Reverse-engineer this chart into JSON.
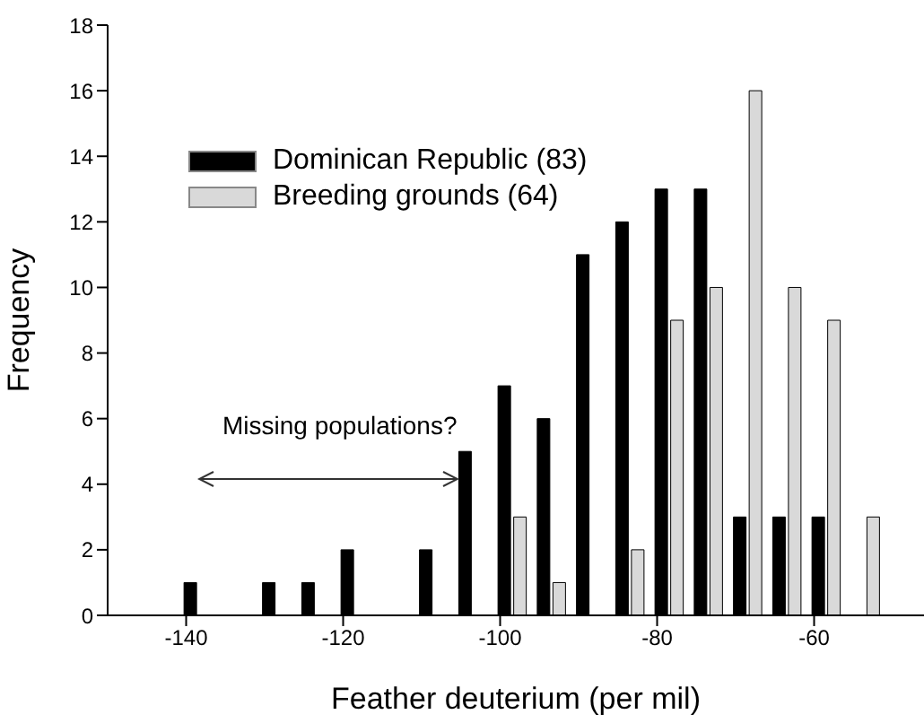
{
  "chart_data": {
    "type": "bar",
    "xlabel": "Feather deuterium (per mil)",
    "ylabel": "Frequency",
    "xlim": [
      -150,
      -46
    ],
    "xticks": [
      -140,
      -120,
      -100,
      -80,
      -60
    ],
    "ylim": [
      0,
      18
    ],
    "yticks": [
      0,
      2,
      4,
      6,
      8,
      10,
      12,
      14,
      16,
      18
    ],
    "series": [
      {
        "name": "Dominican Republic (83)",
        "color": "#000000",
        "x": [
          -139.5,
          -129.5,
          -124.5,
          -119.5,
          -109.5,
          -104.5,
          -99.5,
          -94.5,
          -89.5,
          -84.5,
          -79.5,
          -74.5,
          -69.5,
          -64.5,
          -59.5
        ],
        "values": [
          1,
          1,
          1,
          2,
          2,
          5,
          7,
          6,
          11,
          12,
          13,
          13,
          3,
          3,
          3
        ]
      },
      {
        "name": "Breeding grounds (64)",
        "color": "#d9d9d9",
        "x": [
          -97.5,
          -92.5,
          -82.5,
          -77.5,
          -72.5,
          -67.5,
          -62.5,
          -57.5,
          -52.5
        ],
        "values": [
          3,
          1,
          2,
          9,
          10,
          16,
          10,
          9,
          3
        ]
      }
    ],
    "annotations": [
      "Missing populations?"
    ],
    "legend": "top left",
    "grid": false
  }
}
